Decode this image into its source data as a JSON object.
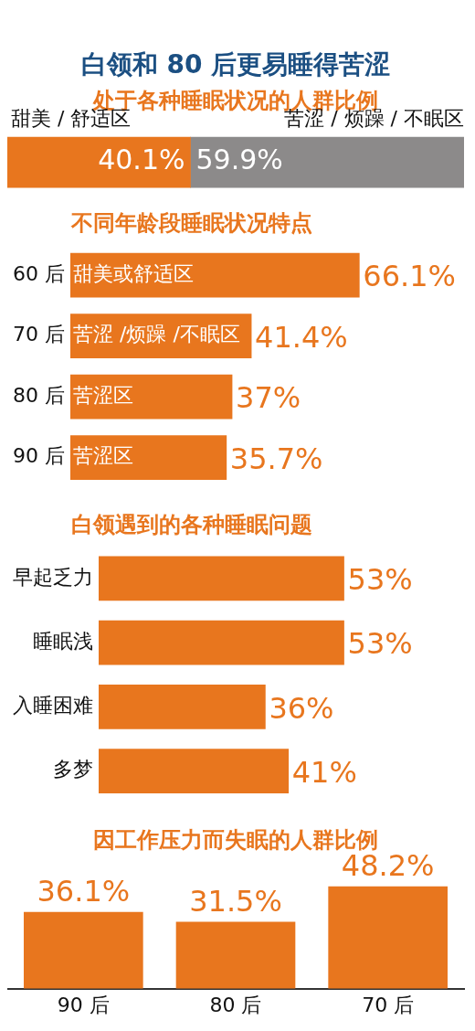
{
  "chart_data": [
    {
      "type": "bar",
      "orientation": "horizontal",
      "stacked": true,
      "title": "白领和 80 后更易睡得苦涩",
      "subtitle": "处于各种睡眠状况的人群比例",
      "categories": [
        null
      ],
      "tick_labels": false,
      "series": [
        {
          "name": "甜美 / 舒适区",
          "color": "#e8761e",
          "values": [
            40.1
          ],
          "value_labels": [
            "40.1%"
          ]
        },
        {
          "name": "苦涩 / 烦躁 / 不眠区",
          "color": "#8c8a8a",
          "values": [
            59.9
          ],
          "value_labels": [
            "59.9%"
          ]
        }
      ]
    },
    {
      "type": "bar",
      "orientation": "horizontal",
      "title": "不同年龄段睡眠状况特点",
      "categories": [
        "60 后",
        "70 后",
        "80 后",
        "90 后"
      ],
      "values": [
        66.1,
        41.4,
        37,
        35.7
      ],
      "value_labels": [
        "66.1%",
        "41.4%",
        "37%",
        "35.7%"
      ],
      "color": "#e8761e",
      "tick_labels": "y",
      "annotations": [
        {
          "text": "甜美或舒适区",
          "y": "60 后"
        },
        {
          "text": "苦涩 /烦躁 /不眠区",
          "y": "70 后"
        },
        {
          "text": "苦涩区",
          "y": "80 后"
        },
        {
          "text": "苦涩区",
          "y": "90 后"
        }
      ]
    },
    {
      "type": "bar",
      "orientation": "horizontal",
      "title": "白领遇到的各种睡眠问题",
      "categories": [
        "早起乏力",
        "睡眠浅",
        "入睡困难",
        "多梦"
      ],
      "values": [
        53,
        53,
        36,
        41
      ],
      "value_labels": [
        "53%",
        "53%",
        "36%",
        "41%"
      ],
      "color": "#e8761e",
      "tick_labels": "y"
    },
    {
      "type": "bar",
      "title": "因工作压力而失眠的人群比例",
      "categories": [
        "90 后",
        "80 后",
        "70 后"
      ],
      "values": [
        36.1,
        31.5,
        48.2
      ],
      "value_labels": [
        "36.1%",
        "31.5%",
        "48.2%"
      ],
      "color": "#e8761e",
      "tick_labels": "x"
    }
  ]
}
